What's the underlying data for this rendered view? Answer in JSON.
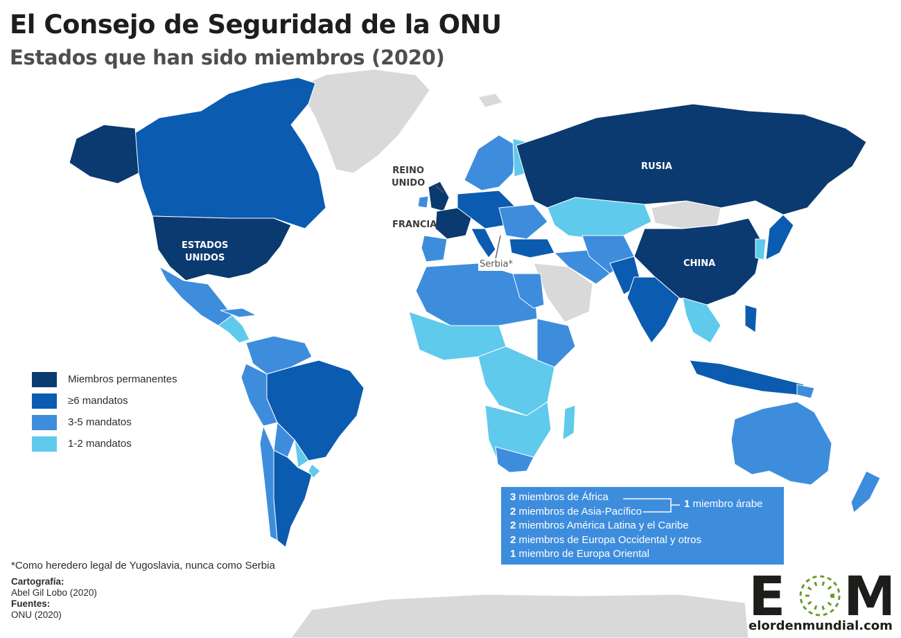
{
  "title": "El Consejo de Seguridad de la ONU",
  "subtitle": "Estados que han sido miembros (2020)",
  "colors": {
    "permanent": "#0b3a70",
    "six_plus": "#0b5bb0",
    "three_five": "#3e8ddd",
    "one_two": "#5fcaeb",
    "never": "#d9d9d9",
    "ocean": "#ffffff",
    "infobox": "#3e8ddd",
    "logo_green": "#6a9b2a"
  },
  "map_labels": {
    "reino_unido": [
      "REINO",
      "UNIDO"
    ],
    "francia": "FRANCIA",
    "estados_unidos": [
      "ESTADOS",
      "UNIDOS"
    ],
    "rusia": "RUSIA",
    "china": "CHINA",
    "serbia": "Serbia*"
  },
  "legend": [
    {
      "label": "Miembros permanentes",
      "color": "#0b3a70"
    },
    {
      "label": "≥6 mandatos",
      "color": "#0b5bb0"
    },
    {
      "label": "3-5 mandatos",
      "color": "#3e8ddd"
    },
    {
      "label": "1-2 mandatos",
      "color": "#5fcaeb"
    }
  ],
  "seats": [
    {
      "count": "3",
      "text": "miembros de África"
    },
    {
      "count": "2",
      "text": "miembros de Asia-Pacífico"
    },
    {
      "count": "2",
      "text": "miembros América Latina y el Caribe"
    },
    {
      "count": "2",
      "text": "miembros de Europa Occidental y otros"
    },
    {
      "count": "1",
      "text": "miembro de Europa Oriental"
    }
  ],
  "arab_seat": {
    "count": "1",
    "text": "miembro árabe"
  },
  "footnote": "*Como heredero legal de Yugoslavia, nunca como Serbia",
  "credits": {
    "cartography_label": "Cartografía:",
    "cartography_value": "Abel Gil Lobo (2020)",
    "sources_label": "Fuentes:",
    "sources_value": "ONU (2020)"
  },
  "logo": {
    "text": "EOM",
    "url": "elordenmundial.com"
  }
}
